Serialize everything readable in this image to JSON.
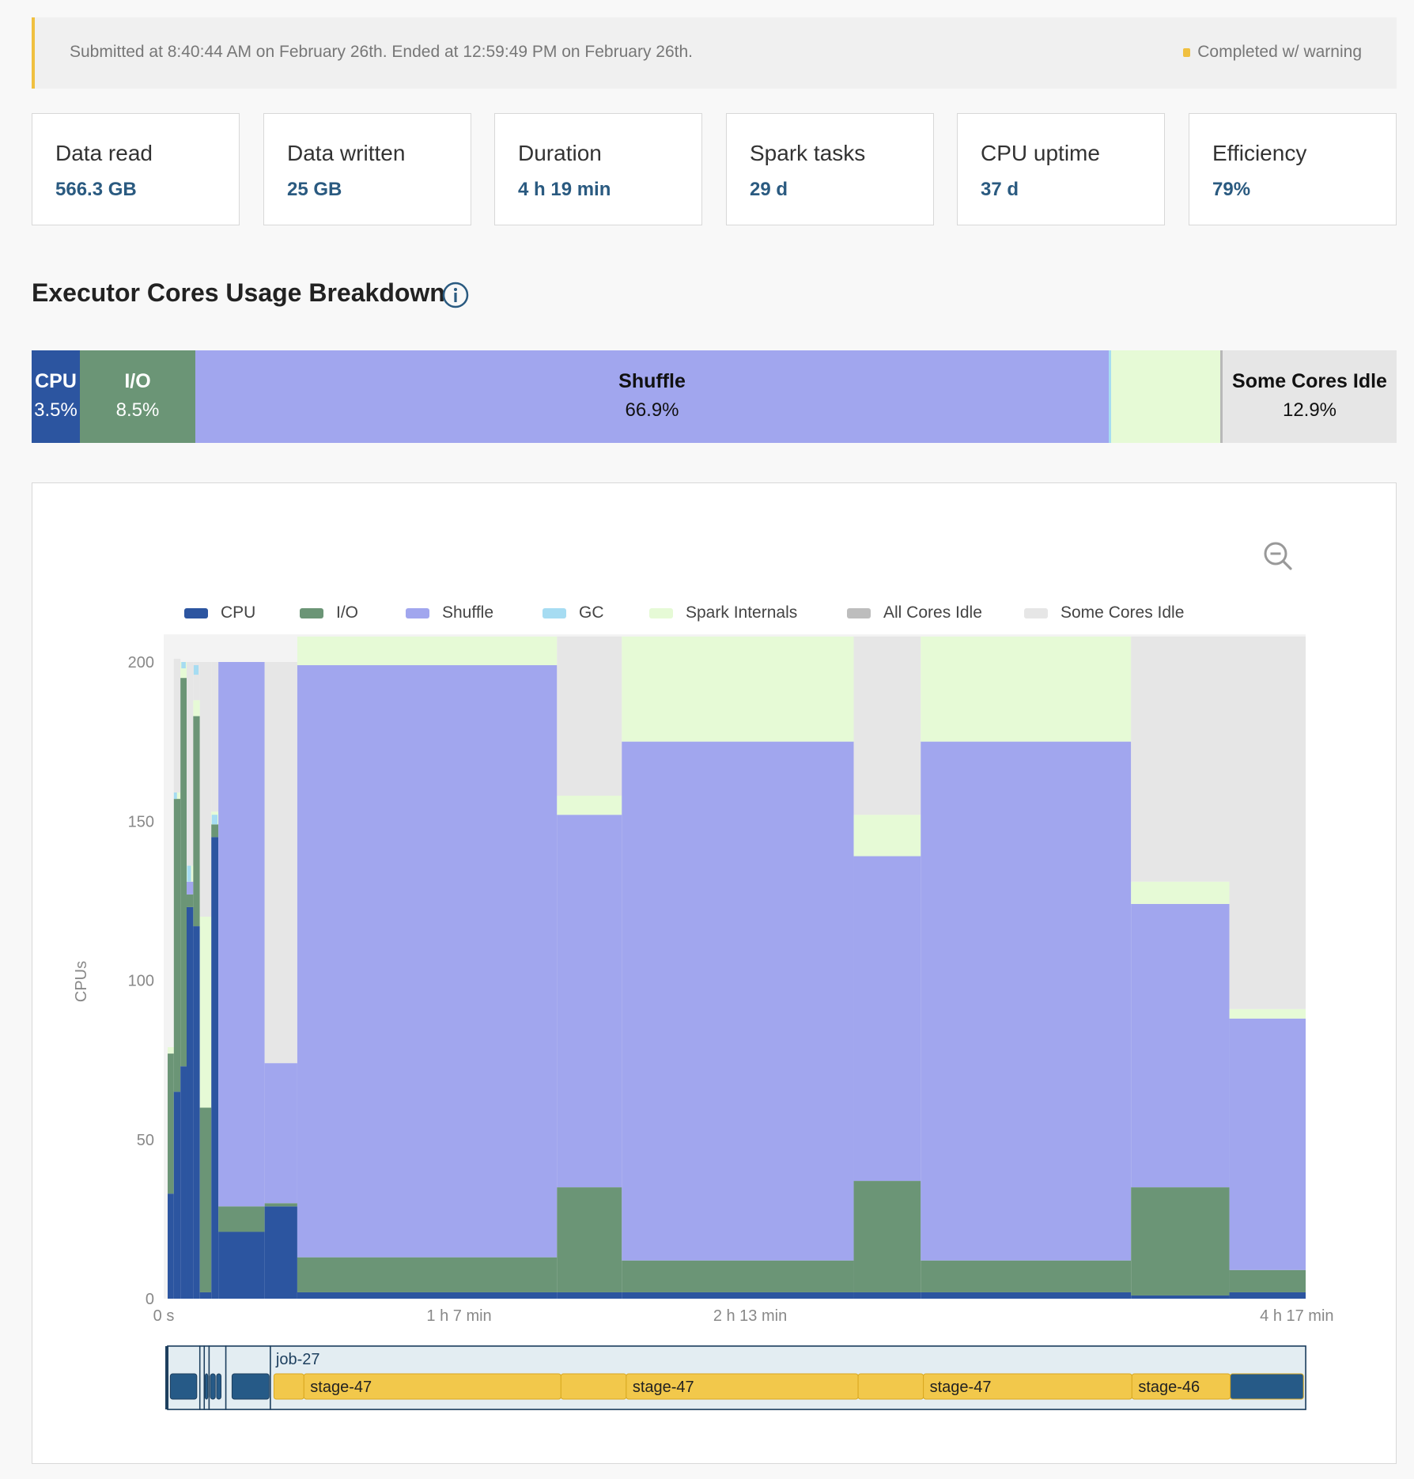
{
  "banner": {
    "text": "Submitted at 8:40:44 AM on February 26th. Ended at 12:59:49 PM on February 26th.",
    "status": "Completed w/ warning",
    "status_color": "#f0c040"
  },
  "metrics": [
    {
      "label": "Data read",
      "value": "566.3 GB"
    },
    {
      "label": "Data written",
      "value": "25 GB"
    },
    {
      "label": "Duration",
      "value": "4 h 19 min"
    },
    {
      "label": "Spark tasks",
      "value": "29 d"
    },
    {
      "label": "CPU uptime",
      "value": "37 d"
    },
    {
      "label": "Efficiency",
      "value": "79%"
    }
  ],
  "section": {
    "title": "Executor Cores Usage Breakdown",
    "info_icon": "info-icon"
  },
  "breakdown": [
    {
      "name": "CPU",
      "pct": "3.5%",
      "color": "#2c55a0"
    },
    {
      "name": "I/O",
      "pct": "8.5%",
      "color": "#6b9576"
    },
    {
      "name": "Shuffle",
      "pct": "66.9%",
      "color": "#a1a6ee"
    },
    {
      "name": "",
      "pct": "",
      "color": "#e6fad6"
    },
    {
      "name": "Some Cores Idle",
      "pct": "12.9%",
      "color": "#e6e6e6"
    }
  ],
  "chart_controls": {
    "zoom_out_icon": "zoom-out-icon"
  },
  "legend": [
    {
      "name": "CPU",
      "color": "#2c55a0"
    },
    {
      "name": "I/O",
      "color": "#6b9576"
    },
    {
      "name": "Shuffle",
      "color": "#a1a6ee"
    },
    {
      "name": "GC",
      "color": "#a6dcf2"
    },
    {
      "name": "Spark Internals",
      "color": "#e6fad6"
    },
    {
      "name": "All Cores Idle",
      "color": "#bdbdbd"
    },
    {
      "name": "Some Cores Idle",
      "color": "#e6e6e6"
    }
  ],
  "chart_data": {
    "type": "area",
    "stacked": true,
    "ylabel": "CPUs",
    "ylim": [
      0,
      200
    ],
    "yticks": [
      0,
      50,
      100,
      150,
      200
    ],
    "x_unit": "minutes",
    "xlim": [
      0,
      259
    ],
    "xticks": [
      {
        "value": 0,
        "label": "0 s"
      },
      {
        "value": 67,
        "label": "1 h 7 min"
      },
      {
        "value": 133,
        "label": "2 h 13 min"
      },
      {
        "value": 257,
        "label": "4 h 17 min"
      }
    ],
    "series_order": [
      "CPU",
      "I/O",
      "Shuffle",
      "Spark Internals",
      "Some Cores Idle"
    ],
    "colors": {
      "CPU": "#2c55a0",
      "I/O": "#6b9576",
      "Shuffle": "#a1a6ee",
      "GC": "#a6dcf2",
      "Spark Internals": "#e6fad6",
      "All Cores Idle": "#bdbdbd",
      "Some Cores Idle": "#e6e6e6"
    },
    "segments": [
      {
        "x0": 0.9,
        "x1": 2.3,
        "CPU": 33,
        "I/O": 44,
        "Shuffle": 0,
        "Spark Internals": 2,
        "Some Cores Idle": 0
      },
      {
        "x0": 2.3,
        "x1": 3.8,
        "CPU": 65,
        "I/O": 92,
        "Shuffle": 0,
        "Spark Internals": 2,
        "Some Cores Idle": 42
      },
      {
        "x0": 3.8,
        "x1": 5.2,
        "CPU": 73,
        "I/O": 122,
        "Shuffle": 0,
        "Spark Internals": 5,
        "Some Cores Idle": 0
      },
      {
        "x0": 5.2,
        "x1": 6.7,
        "CPU": 123,
        "I/O": 4,
        "Shuffle": 4,
        "Spark Internals": 5,
        "Some Cores Idle": 64
      },
      {
        "x0": 6.7,
        "x1": 8.2,
        "CPU": 117,
        "I/O": 66,
        "Shuffle": 0,
        "Spark Internals": 5,
        "Some Cores Idle": 12
      },
      {
        "x0": 8.2,
        "x1": 10.8,
        "CPU": 2,
        "I/O": 58,
        "Shuffle": 0,
        "Spark Internals": 60,
        "Some Cores Idle": 80
      },
      {
        "x0": 10.8,
        "x1": 12.4,
        "CPU": 145,
        "I/O": 4,
        "Shuffle": 0,
        "Spark Internals": 4,
        "Some Cores Idle": 47
      },
      {
        "x0": 12.4,
        "x1": 22.9,
        "CPU": 21,
        "I/O": 8,
        "Shuffle": 171,
        "Spark Internals": 0,
        "Some Cores Idle": 0
      },
      {
        "x0": 22.9,
        "x1": 30.3,
        "CPU": 29,
        "I/O": 1,
        "Shuffle": 44,
        "Spark Internals": 0,
        "Some Cores Idle": 126
      },
      {
        "x0": 30.3,
        "x1": 89.2,
        "CPU": 2,
        "I/O": 11,
        "Shuffle": 186,
        "Spark Internals": 9,
        "Some Cores Idle": 0
      },
      {
        "x0": 89.2,
        "x1": 103.9,
        "CPU": 2,
        "I/O": 33,
        "Shuffle": 117,
        "Spark Internals": 6,
        "Some Cores Idle": 50
      },
      {
        "x0": 103.9,
        "x1": 156.5,
        "CPU": 2,
        "I/O": 10,
        "Shuffle": 163,
        "Spark Internals": 33,
        "Some Cores Idle": 0
      },
      {
        "x0": 156.5,
        "x1": 171.7,
        "CPU": 2,
        "I/O": 35,
        "Shuffle": 102,
        "Spark Internals": 13,
        "Some Cores Idle": 56
      },
      {
        "x0": 171.7,
        "x1": 219.4,
        "CPU": 2,
        "I/O": 10,
        "Shuffle": 163,
        "Spark Internals": 33,
        "Some Cores Idle": 0
      },
      {
        "x0": 219.4,
        "x1": 241.7,
        "CPU": 1,
        "I/O": 34,
        "Shuffle": 89,
        "Spark Internals": 7,
        "Some Cores Idle": 77
      },
      {
        "x0": 241.7,
        "x1": 259,
        "CPU": 2,
        "I/O": 7,
        "Shuffle": 79,
        "Spark Internals": 3,
        "Some Cores Idle": 117
      }
    ],
    "gc_slivers": [
      {
        "x0": 2.3,
        "x1": 3.0,
        "y0": 157,
        "y1": 159
      },
      {
        "x0": 4.0,
        "x1": 5.0,
        "y0": 198,
        "y1": 200
      },
      {
        "x0": 5.3,
        "x1": 6.2,
        "y0": 131,
        "y1": 136
      },
      {
        "x0": 6.8,
        "x1": 7.9,
        "y0": 196,
        "y1": 199
      },
      {
        "x0": 10.9,
        "x1": 12.2,
        "y0": 149,
        "y1": 152
      }
    ]
  },
  "timeline": {
    "job_label": "job-27",
    "early_jobs": [
      {
        "x0": 0.9,
        "x1": 8.2
      },
      {
        "x0": 8.2,
        "x1": 9.2
      },
      {
        "x0": 9.2,
        "x1": 10.3
      },
      {
        "x0": 10.3,
        "x1": 14.1
      },
      {
        "x0": 14.1,
        "x1": 24.2
      }
    ],
    "job_span": [
      24.2,
      259
    ],
    "stages": [
      {
        "label": "",
        "x0": 25,
        "x1": 31.8,
        "color": "#f2c84b"
      },
      {
        "label": "stage-47",
        "x0": 31.8,
        "x1": 90.1,
        "color": "#f2c84b"
      },
      {
        "label": "",
        "x0": 90.1,
        "x1": 104.9,
        "color": "#f2c84b"
      },
      {
        "label": "stage-47",
        "x0": 104.9,
        "x1": 157.5,
        "color": "#f2c84b"
      },
      {
        "label": "",
        "x0": 157.5,
        "x1": 172.3,
        "color": "#f2c84b"
      },
      {
        "label": "stage-47",
        "x0": 172.3,
        "x1": 219.6,
        "color": "#f2c84b"
      },
      {
        "label": "stage-46",
        "x0": 219.6,
        "x1": 241.9,
        "color": "#f2c84b"
      },
      {
        "label": "",
        "x0": 241.9,
        "x1": 258.5,
        "color": "#265a87"
      }
    ],
    "early_stages": [
      {
        "x0": 1.5,
        "x1": 7.5
      },
      {
        "x0": 9.4,
        "x1": 10.0
      },
      {
        "x0": 10.6,
        "x1": 11.7
      },
      {
        "x0": 12.0,
        "x1": 13.0
      },
      {
        "x0": 15.5,
        "x1": 23.9
      }
    ]
  }
}
